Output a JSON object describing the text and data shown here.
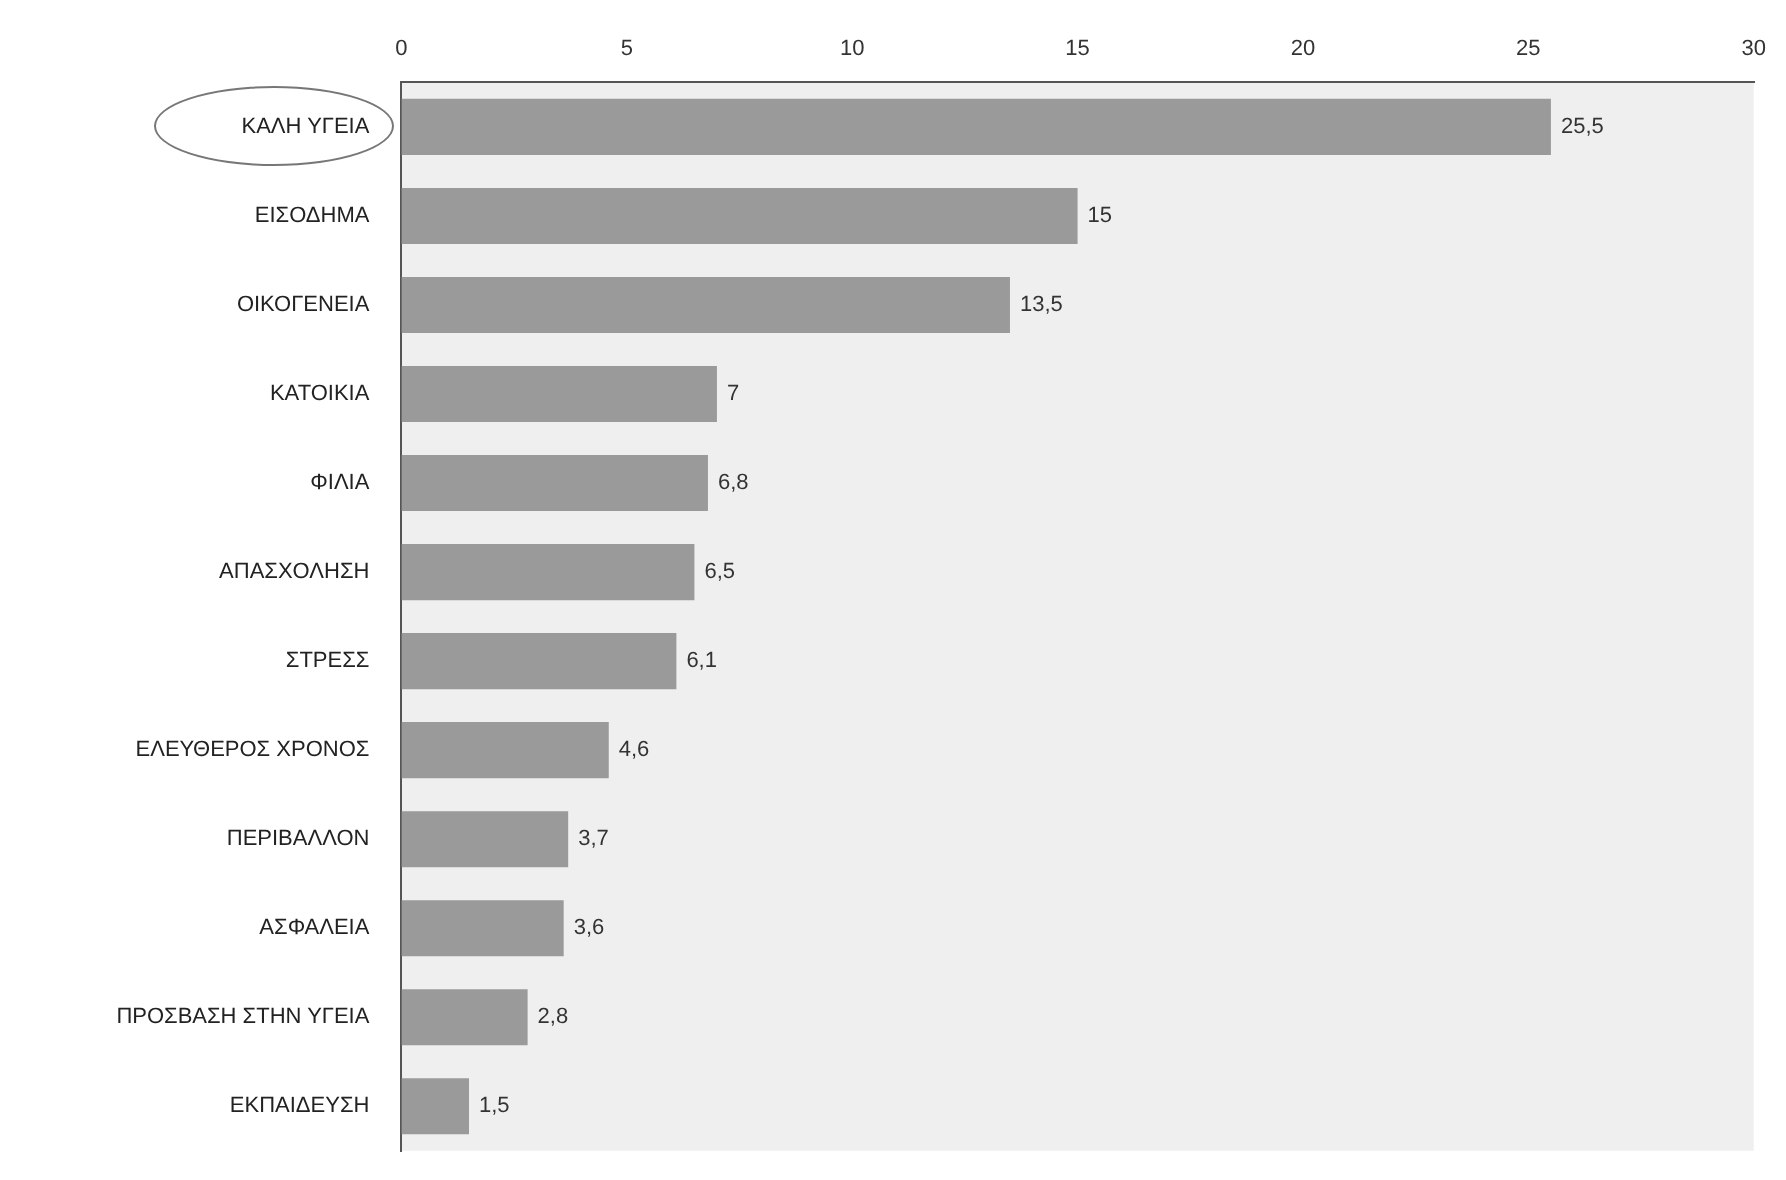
{
  "chart_data": {
    "type": "bar",
    "orientation": "horizontal",
    "categories": [
      "ΚΑΛΗ ΥΓΕΙΑ",
      "ΕΙΣΟΔΗΜΑ",
      "ΟΙΚΟΓΕΝΕΙΑ",
      "ΚΑΤΟΙΚΙΑ",
      "ΦΙΛΙΑ",
      "ΑΠΑΣΧΟΛΗΣΗ",
      "ΣΤΡΕΣΣ",
      "ΕΛΕΥΘΕΡΟΣ ΧΡΟΝΟΣ",
      "ΠΕΡΙΒΑΛΛΟΝ",
      "ΑΣΦΑΛΕΙΑ",
      "ΠΡΟΣΒΑΣΗ ΣΤΗΝ ΥΓΕΙΑ",
      "ΕΚΠΑΙΔΕΥΣΗ"
    ],
    "values": [
      25.5,
      15,
      13.5,
      7,
      6.8,
      6.5,
      6.1,
      4.6,
      3.7,
      3.6,
      2.8,
      1.5
    ],
    "value_labels": [
      "25,5",
      "15",
      "13,5",
      "7",
      "6,8",
      "6,5",
      "6,1",
      "4,6",
      "3,7",
      "3,6",
      "2,8",
      "1,5"
    ],
    "color": "#9a9a9a",
    "xlim": [
      0,
      30
    ],
    "xticks": [
      0,
      5,
      10,
      15,
      20,
      25,
      30
    ],
    "grid": false,
    "legend": false
  }
}
